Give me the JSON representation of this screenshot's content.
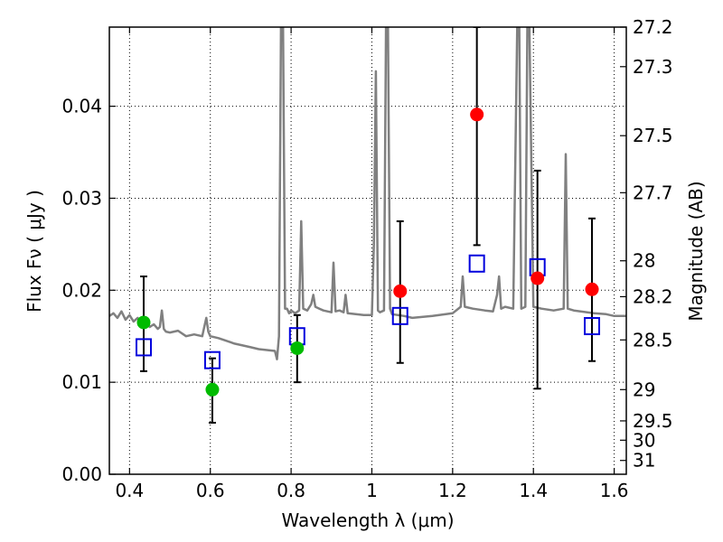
{
  "chart_data": {
    "type": "scatter",
    "xlabel": "Wavelength  λ (μm)",
    "ylabel": "Flux  Fν  ( μJy )",
    "y2label": "Magnitude (AB)",
    "xlim": [
      0.35,
      1.63
    ],
    "ylim": [
      0.0,
      0.0486
    ],
    "x_ticks": [
      0.4,
      0.6,
      0.8,
      1.0,
      1.2,
      1.4,
      1.6
    ],
    "x_tick_labels": [
      "0.4",
      "0.6",
      "0.8",
      "1",
      "1.2",
      "1.4",
      "1.6"
    ],
    "y_ticks": [
      0.0,
      0.01,
      0.02,
      0.03,
      0.04
    ],
    "y_tick_labels": [
      "0.00",
      "0.01",
      "0.02",
      "0.03",
      "0.04"
    ],
    "y2_ticks": [
      {
        "label": "27.2",
        "flux": 0.0486
      },
      {
        "label": "27.3",
        "flux": 0.0443
      },
      {
        "label": "27.5",
        "flux": 0.0368
      },
      {
        "label": "27.7",
        "flux": 0.0306
      },
      {
        "label": "28",
        "flux": 0.0232
      },
      {
        "label": "28.2",
        "flux": 0.0193
      },
      {
        "label": "28.5",
        "flux": 0.0146
      },
      {
        "label": "29",
        "flux": 0.0092
      },
      {
        "label": "29.5",
        "flux": 0.0058
      },
      {
        "label": "30",
        "flux": 0.0037
      },
      {
        "label": "31",
        "flux": 0.0015
      }
    ],
    "grid": true,
    "colors": {
      "model": "#808080",
      "green_points": "#00bb00",
      "red_points": "#ff0000",
      "model_boxes": "#0000dd",
      "errorbars": "#000000"
    },
    "model_spectrum": {
      "x": [
        0.35,
        0.36,
        0.37,
        0.38,
        0.39,
        0.4,
        0.41,
        0.42,
        0.43,
        0.44,
        0.45,
        0.46,
        0.47,
        0.475,
        0.48,
        0.485,
        0.49,
        0.5,
        0.52,
        0.54,
        0.56,
        0.58,
        0.585,
        0.59,
        0.595,
        0.6,
        0.62,
        0.64,
        0.66,
        0.68,
        0.7,
        0.72,
        0.74,
        0.76,
        0.765,
        0.77,
        0.775,
        0.78,
        0.785,
        0.79,
        0.795,
        0.8,
        0.81,
        0.82,
        0.825,
        0.83,
        0.84,
        0.85,
        0.855,
        0.86,
        0.87,
        0.88,
        0.9,
        0.905,
        0.91,
        0.92,
        0.93,
        0.935,
        0.94,
        0.96,
        0.98,
        1.0,
        1.005,
        1.01,
        1.015,
        1.02,
        1.03,
        1.035,
        1.04,
        1.045,
        1.05,
        1.08,
        1.1,
        1.15,
        1.2,
        1.22,
        1.225,
        1.23,
        1.25,
        1.28,
        1.3,
        1.31,
        1.315,
        1.32,
        1.33,
        1.35,
        1.36,
        1.365,
        1.37,
        1.38,
        1.385,
        1.39,
        1.4,
        1.42,
        1.45,
        1.475,
        1.48,
        1.485,
        1.5,
        1.55,
        1.58,
        1.6,
        1.63
      ],
      "y": [
        0.0172,
        0.0175,
        0.017,
        0.0177,
        0.0168,
        0.0173,
        0.0166,
        0.017,
        0.0164,
        0.0168,
        0.016,
        0.0163,
        0.0158,
        0.016,
        0.0178,
        0.0158,
        0.0155,
        0.0154,
        0.0156,
        0.015,
        0.0152,
        0.015,
        0.016,
        0.017,
        0.0155,
        0.015,
        0.0148,
        0.0145,
        0.0142,
        0.014,
        0.0138,
        0.0136,
        0.0135,
        0.0134,
        0.0125,
        0.015,
        0.0486,
        0.0486,
        0.018,
        0.018,
        0.0175,
        0.0178,
        0.0175,
        0.0178,
        0.0275,
        0.018,
        0.0178,
        0.0185,
        0.0195,
        0.0182,
        0.018,
        0.0178,
        0.0176,
        0.023,
        0.0177,
        0.0178,
        0.0176,
        0.0195,
        0.0175,
        0.0174,
        0.0173,
        0.0173,
        0.025,
        0.0438,
        0.0178,
        0.0176,
        0.0178,
        0.0486,
        0.0486,
        0.018,
        0.0174,
        0.0172,
        0.017,
        0.0172,
        0.0175,
        0.0182,
        0.0215,
        0.0182,
        0.018,
        0.0178,
        0.0177,
        0.0195,
        0.0215,
        0.018,
        0.0182,
        0.018,
        0.0486,
        0.0486,
        0.018,
        0.0182,
        0.0486,
        0.0486,
        0.0182,
        0.018,
        0.0178,
        0.018,
        0.0348,
        0.018,
        0.0178,
        0.0175,
        0.0174,
        0.0172,
        0.0172
      ]
    },
    "green_points": [
      {
        "x": 0.435,
        "y": 0.0165
      },
      {
        "x": 0.605,
        "y": 0.0092
      },
      {
        "x": 0.815,
        "y": 0.0137
      }
    ],
    "red_points": [
      {
        "x": 1.07,
        "y": 0.0199
      },
      {
        "x": 1.26,
        "y": 0.0391
      },
      {
        "x": 1.41,
        "y": 0.0213
      },
      {
        "x": 1.545,
        "y": 0.0201
      }
    ],
    "model_boxes": [
      {
        "x": 0.435,
        "y": 0.0138
      },
      {
        "x": 0.605,
        "y": 0.0124
      },
      {
        "x": 0.815,
        "y": 0.015
      },
      {
        "x": 1.07,
        "y": 0.0172
      },
      {
        "x": 1.26,
        "y": 0.0229
      },
      {
        "x": 1.41,
        "y": 0.0225
      },
      {
        "x": 1.545,
        "y": 0.0161
      }
    ],
    "error_bars": [
      {
        "x": 0.435,
        "low": 0.0112,
        "high": 0.0215
      },
      {
        "x": 0.605,
        "low": 0.0056,
        "high": 0.0126
      },
      {
        "x": 0.815,
        "low": 0.01,
        "high": 0.0173
      },
      {
        "x": 1.07,
        "low": 0.0121,
        "high": 0.0275
      },
      {
        "x": 1.26,
        "low": 0.0249,
        "high": 0.0486
      },
      {
        "x": 1.41,
        "low": 0.0093,
        "high": 0.033
      },
      {
        "x": 1.545,
        "low": 0.0123,
        "high": 0.0278
      }
    ]
  }
}
